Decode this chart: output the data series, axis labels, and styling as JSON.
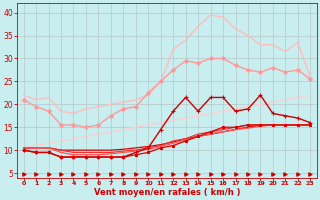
{
  "background_color": "#c8eef0",
  "grid_color": "#b0b0b0",
  "xlabel": "Vent moyen/en rafales ( km/h )",
  "xlabel_color": "#cc0000",
  "tick_color": "#cc0000",
  "x_values": [
    0,
    1,
    2,
    3,
    4,
    5,
    6,
    7,
    8,
    9,
    10,
    11,
    12,
    13,
    14,
    15,
    16,
    17,
    18,
    19,
    20,
    21,
    22,
    23
  ],
  "ylim": [
    4,
    42
  ],
  "xlim": [
    -0.5,
    23.5
  ],
  "yticks": [
    5,
    10,
    15,
    20,
    25,
    30,
    35,
    40
  ],
  "lines": [
    {
      "name": "top_light_pink_no_marker",
      "color": "#ffbbbb",
      "lw": 1.0,
      "marker": null,
      "zorder": 2,
      "y": [
        22.0,
        21.0,
        21.5,
        18.5,
        18.0,
        19.0,
        19.5,
        20.0,
        20.5,
        21.0,
        22.0,
        25.0,
        32.0,
        34.0,
        37.0,
        39.5,
        39.0,
        36.5,
        35.0,
        33.0,
        33.0,
        31.5,
        33.5,
        26.0
      ]
    },
    {
      "name": "second_pink_with_marker",
      "color": "#ff9999",
      "lw": 1.0,
      "marker": "D",
      "markersize": 2.0,
      "zorder": 3,
      "y": [
        21.0,
        19.5,
        18.5,
        15.5,
        15.5,
        15.0,
        15.5,
        17.5,
        19.0,
        19.5,
        22.5,
        25.0,
        27.5,
        29.5,
        29.0,
        30.0,
        30.0,
        28.5,
        27.5,
        27.0,
        28.0,
        27.0,
        27.5,
        25.5
      ]
    },
    {
      "name": "diagonal_light_pink_upper",
      "color": "#ffcccc",
      "lw": 0.9,
      "marker": null,
      "zorder": 2,
      "y": [
        10.5,
        11.0,
        11.5,
        12.0,
        12.5,
        13.0,
        13.5,
        14.0,
        14.5,
        15.0,
        15.5,
        16.0,
        16.5,
        17.0,
        17.5,
        18.0,
        18.5,
        19.0,
        19.5,
        20.0,
        20.5,
        21.0,
        21.5,
        22.0
      ]
    },
    {
      "name": "dark_red_spiky",
      "color": "#cc0000",
      "lw": 1.0,
      "marker": "+",
      "markersize": 3.5,
      "zorder": 5,
      "y": [
        10.0,
        9.5,
        9.5,
        8.5,
        8.5,
        8.5,
        8.5,
        8.5,
        8.5,
        9.5,
        10.5,
        14.5,
        18.5,
        21.5,
        18.5,
        21.5,
        21.5,
        18.5,
        19.0,
        22.0,
        18.0,
        17.5,
        17.0,
        16.0
      ]
    },
    {
      "name": "red_diagonal1",
      "color": "#dd0000",
      "lw": 0.9,
      "marker": null,
      "zorder": 4,
      "y": [
        10.5,
        10.5,
        10.5,
        10.0,
        10.0,
        10.0,
        10.0,
        10.0,
        10.2,
        10.5,
        10.8,
        11.2,
        11.8,
        12.5,
        13.0,
        13.5,
        14.0,
        14.5,
        15.0,
        15.5,
        15.5,
        15.5,
        15.5,
        15.5
      ]
    },
    {
      "name": "red_diagonal2",
      "color": "#ee3333",
      "lw": 0.9,
      "marker": null,
      "zorder": 4,
      "y": [
        10.5,
        10.5,
        10.5,
        10.0,
        9.5,
        9.5,
        9.5,
        9.5,
        9.8,
        10.0,
        10.5,
        11.0,
        12.0,
        12.5,
        13.5,
        14.0,
        14.5,
        15.0,
        15.5,
        15.5,
        15.5,
        15.5,
        15.5,
        15.5
      ]
    },
    {
      "name": "red_diagonal3",
      "color": "#ff5555",
      "lw": 0.9,
      "marker": null,
      "zorder": 4,
      "y": [
        10.5,
        10.5,
        10.5,
        9.5,
        9.0,
        9.0,
        9.0,
        9.2,
        9.5,
        9.8,
        10.2,
        10.8,
        11.5,
        12.2,
        13.0,
        13.5,
        14.0,
        14.5,
        14.8,
        15.2,
        15.5,
        15.5,
        15.5,
        15.5
      ]
    },
    {
      "name": "red_marker_flat_mid",
      "color": "#dd0000",
      "lw": 0.9,
      "marker": "s",
      "markersize": 2.0,
      "zorder": 5,
      "y": [
        10.0,
        9.5,
        9.5,
        8.5,
        8.5,
        8.5,
        8.5,
        8.5,
        8.5,
        9.0,
        9.5,
        10.5,
        11.0,
        12.0,
        13.0,
        14.0,
        15.0,
        15.0,
        15.5,
        15.5,
        15.5,
        15.5,
        15.5,
        15.5
      ]
    },
    {
      "name": "arrow_line_bottom",
      "color": "#cc0000",
      "lw": 0.8,
      "marker": ">",
      "markersize": 2.5,
      "linestyle": "none",
      "zorder": 6,
      "y": [
        4.8,
        4.8,
        4.8,
        4.8,
        4.8,
        4.8,
        4.8,
        4.8,
        4.8,
        4.8,
        4.8,
        4.8,
        4.8,
        4.8,
        4.8,
        4.8,
        4.8,
        4.8,
        4.8,
        4.8,
        4.8,
        4.8,
        4.8,
        4.8
      ]
    }
  ]
}
